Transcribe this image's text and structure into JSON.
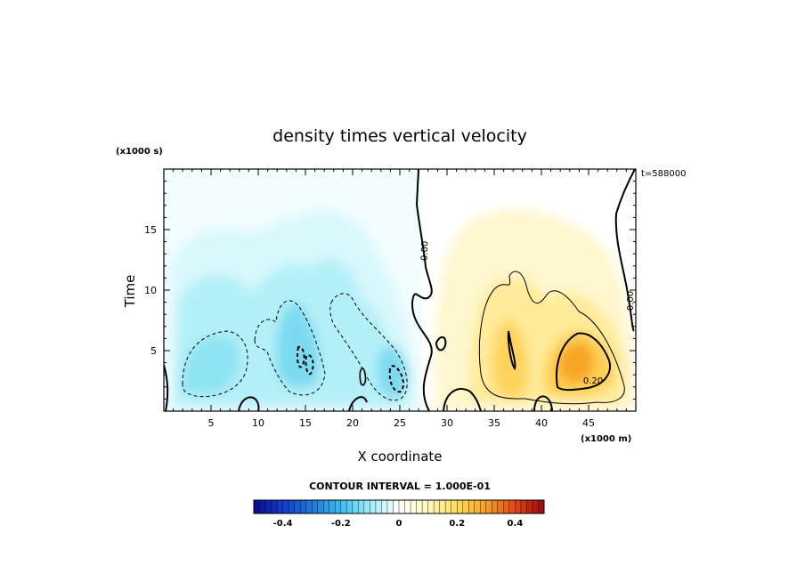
{
  "chart_data": {
    "type": "heatmap",
    "title": "density times vertical velocity",
    "xlabel": "X coordinate",
    "ylabel": "Time",
    "x_units": "(x1000 m)",
    "y_units": "(x1000 s)",
    "time_stamp": "t=588000",
    "x_range": [
      0,
      50
    ],
    "y_range": [
      0,
      20
    ],
    "x_ticks": [
      5,
      10,
      15,
      20,
      25,
      30,
      35,
      40,
      45
    ],
    "x_tick_labels": [
      "5",
      "10",
      "15",
      "20",
      "25",
      "30",
      "35",
      "40",
      "45"
    ],
    "y_ticks": [
      5,
      10,
      15
    ],
    "y_tick_labels": [
      "5",
      "10",
      "15"
    ],
    "contour_interval": "CONTOUR INTERVAL = 1.000E-01",
    "contour_labels": [
      "0.00",
      "0.00",
      "0.20"
    ],
    "colorbar": {
      "range": [
        -0.5,
        0.5
      ],
      "ticks": [
        -0.4,
        -0.2,
        0,
        0.2,
        0.4
      ],
      "tick_labels": [
        "-0.4",
        "-0.2",
        "0",
        "0.2",
        "0.4"
      ],
      "colors": {
        "neg_strong": "#0a0a8c",
        "neg_mid": "#29a7e6",
        "neg_weak": "#9fe9f5",
        "zero": "#ffffff",
        "pos_weak": "#fff2a6",
        "pos_mid": "#f5a623",
        "pos_strong": "#a30d0d"
      }
    },
    "features": [
      {
        "sign": "negative",
        "x": 4,
        "y": 3.5,
        "peak": -0.25
      },
      {
        "sign": "negative",
        "x": 14.5,
        "y": 4,
        "peak": -0.3
      },
      {
        "sign": "negative",
        "x": 24,
        "y": 3,
        "peak": -0.3
      },
      {
        "sign": "positive",
        "x": 37,
        "y": 5,
        "peak": 0.25
      },
      {
        "sign": "positive",
        "x": 44,
        "y": 4,
        "peak": 0.3
      }
    ]
  }
}
